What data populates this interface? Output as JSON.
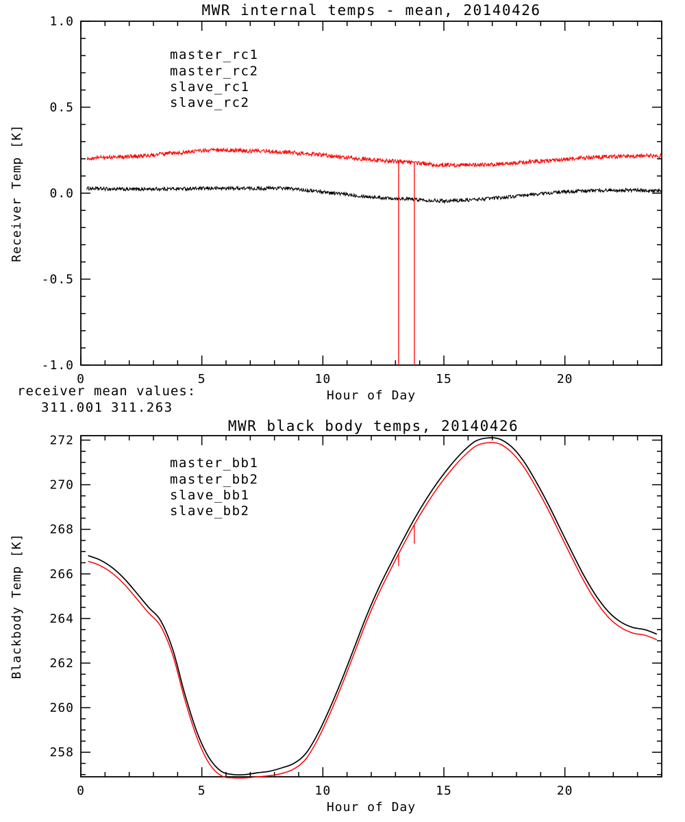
{
  "figure": {
    "background": "#ffffff",
    "frame_color": "#000000"
  },
  "colors": {
    "black": "#000000",
    "red": "#ff0000",
    "blue": "#0000ff",
    "green": "#00e000"
  },
  "annotation": {
    "label": "receiver mean values:",
    "values": [
      {
        "text": "311.001",
        "color": "#000000"
      },
      {
        "text": "311.263",
        "color": "#ff0000"
      }
    ]
  },
  "chart_data": [
    {
      "type": "line",
      "title": "MWR internal temps - mean, 20140426",
      "xlabel": "Hour of Day",
      "ylabel": "Receiver Temp [K]",
      "xlim": [
        0,
        24
      ],
      "ylim": [
        -1.0,
        1.0
      ],
      "grid": false,
      "legend_position": "upper-left-inside",
      "x_major_ticks": [
        0,
        5,
        10,
        15,
        20
      ],
      "x_major_labels": [
        "0",
        "5",
        "10",
        "15",
        "20"
      ],
      "x_minor_step": 1,
      "y_major_ticks": [
        -1.0,
        -0.5,
        0.0,
        0.5,
        1.0
      ],
      "y_major_labels": [
        "-1.0",
        "-0.5",
        "0.0",
        "0.5",
        "1.0"
      ],
      "y_minor_step": 0.1,
      "legend": [
        {
          "label": "master_rc1",
          "color": "#000000"
        },
        {
          "label": "master_rc2",
          "color": "#ff0000"
        },
        {
          "label": "slave_rc1",
          "color": "#0000ff"
        },
        {
          "label": "slave_rc2",
          "color": "#00e000"
        }
      ],
      "series": [
        {
          "name": "master_rc1",
          "color": "#000000",
          "noise": 0.01,
          "width": 1.1,
          "x": [
            0.25,
            1,
            2,
            3,
            4,
            5,
            5.5,
            6,
            6.5,
            7,
            7.5,
            8,
            8.5,
            9,
            9.5,
            10,
            10.5,
            11,
            11.5,
            12,
            12.5,
            13,
            13.5,
            14,
            14.5,
            15,
            15.5,
            16,
            16.5,
            17,
            17.5,
            18,
            18.5,
            19,
            19.5,
            20,
            20.5,
            21,
            21.5,
            22,
            22.5,
            23,
            23.5,
            24
          ],
          "y": [
            0.028,
            0.025,
            0.022,
            0.024,
            0.026,
            0.027,
            0.028,
            0.028,
            0.029,
            0.028,
            0.027,
            0.03,
            0.028,
            0.022,
            0.015,
            0.008,
            0.0,
            -0.008,
            -0.015,
            -0.022,
            -0.027,
            -0.03,
            -0.033,
            -0.038,
            -0.042,
            -0.044,
            -0.043,
            -0.04,
            -0.035,
            -0.03,
            -0.024,
            -0.018,
            -0.01,
            -0.003,
            0.003,
            0.008,
            0.012,
            0.014,
            0.016,
            0.018,
            0.018,
            0.017,
            0.015,
            0.012
          ]
        },
        {
          "name": "master_rc2",
          "color": "#ff0000",
          "noise": 0.012,
          "width": 1.1,
          "x": [
            0.25,
            1,
            2,
            3,
            4,
            5,
            5.5,
            6,
            6.5,
            7,
            7.5,
            8,
            8.5,
            9,
            9.5,
            10,
            10.5,
            11,
            11.5,
            12,
            12.5,
            13,
            13.5,
            14,
            14.5,
            15,
            15.5,
            16,
            16.5,
            17,
            17.5,
            18,
            18.5,
            19,
            19.5,
            20,
            20.5,
            21,
            21.5,
            22,
            22.5,
            23,
            23.5,
            24
          ],
          "y": [
            0.203,
            0.208,
            0.213,
            0.222,
            0.235,
            0.246,
            0.249,
            0.25,
            0.248,
            0.246,
            0.244,
            0.242,
            0.238,
            0.233,
            0.228,
            0.222,
            0.215,
            0.208,
            0.201,
            0.196,
            0.19,
            0.186,
            0.181,
            0.173,
            0.168,
            0.165,
            0.163,
            0.163,
            0.165,
            0.168,
            0.171,
            0.175,
            0.18,
            0.185,
            0.191,
            0.197,
            0.202,
            0.207,
            0.21,
            0.213,
            0.215,
            0.215,
            0.217,
            0.218
          ]
        }
      ],
      "spikes": [
        {
          "x": 13.13,
          "y1": 0.19,
          "y2": -1.0,
          "color": "#ff0000"
        },
        {
          "x": 13.78,
          "y1": 0.18,
          "y2": -1.0,
          "color": "#ff0000"
        }
      ]
    },
    {
      "type": "line",
      "title": "MWR black body temps, 20140426",
      "xlabel": "Hour of Day",
      "ylabel": "Blackbody Temp [K]",
      "xlim": [
        0,
        24
      ],
      "ylim": [
        256.9,
        272.2
      ],
      "grid": false,
      "legend_position": "upper-left-inside",
      "x_major_ticks": [
        0,
        5,
        10,
        15,
        20
      ],
      "x_major_labels": [
        "0",
        "5",
        "10",
        "15",
        "20"
      ],
      "x_minor_step": 1,
      "y_major_ticks": [
        258,
        260,
        262,
        264,
        266,
        268,
        270,
        272
      ],
      "y_major_labels": [
        "258",
        "260",
        "262",
        "264",
        "266",
        "268",
        "270",
        "272"
      ],
      "y_minor_step": 0.5,
      "legend": [
        {
          "label": "master_bb1",
          "color": "#000000"
        },
        {
          "label": "master_bb2",
          "color": "#ff0000"
        },
        {
          "label": "slave_bb1",
          "color": "#0000ff"
        },
        {
          "label": "slave_bb2",
          "color": "#00e000"
        }
      ],
      "series": [
        {
          "name": "master_bb1",
          "color": "#000000",
          "noise": 0,
          "width": 1.7,
          "x": [
            0.3,
            0.8,
            1.3,
            1.8,
            2.3,
            2.8,
            3.3,
            3.8,
            4.3,
            4.8,
            5.3,
            5.8,
            6.3,
            6.8,
            7.3,
            7.8,
            8.3,
            8.8,
            9.3,
            9.8,
            10.3,
            10.8,
            11.3,
            11.8,
            12.3,
            12.8,
            13.3,
            13.8,
            14.3,
            14.8,
            15.3,
            15.8,
            16.3,
            16.8,
            17.3,
            17.8,
            18.3,
            18.8,
            19.3,
            19.8,
            20.3,
            20.8,
            21.3,
            21.8,
            22.3,
            22.8,
            23.3,
            23.8
          ],
          "y": [
            266.82,
            266.62,
            266.28,
            265.78,
            265.15,
            264.5,
            263.9,
            262.6,
            260.6,
            258.9,
            257.75,
            257.15,
            257.0,
            257.0,
            257.08,
            257.15,
            257.3,
            257.5,
            257.95,
            258.85,
            260.0,
            261.3,
            262.7,
            264.1,
            265.35,
            266.45,
            267.5,
            268.5,
            269.4,
            270.2,
            270.9,
            271.5,
            271.95,
            272.1,
            272.05,
            271.7,
            271.05,
            270.15,
            269.15,
            268.05,
            266.95,
            265.9,
            265.0,
            264.3,
            263.85,
            263.6,
            263.5,
            263.3
          ]
        },
        {
          "name": "master_bb2",
          "color": "#ff0000",
          "noise": 0,
          "width": 1.5,
          "x": [
            0.3,
            0.8,
            1.3,
            1.8,
            2.3,
            2.8,
            3.3,
            3.8,
            4.3,
            4.8,
            5.3,
            5.8,
            6.3,
            6.8,
            7.3,
            7.8,
            8.3,
            8.8,
            9.3,
            9.8,
            10.3,
            10.8,
            11.3,
            11.8,
            12.3,
            12.8,
            13.3,
            13.8,
            14.3,
            14.8,
            15.3,
            15.8,
            16.3,
            16.8,
            17.3,
            17.8,
            18.3,
            18.8,
            19.3,
            19.8,
            20.3,
            20.8,
            21.3,
            21.8,
            22.3,
            22.8,
            23.3,
            23.8
          ],
          "y": [
            266.57,
            266.37,
            266.03,
            265.53,
            264.9,
            264.25,
            263.65,
            262.35,
            260.35,
            258.65,
            257.5,
            256.95,
            256.85,
            256.85,
            256.9,
            256.95,
            257.05,
            257.25,
            257.7,
            258.6,
            259.75,
            261.05,
            262.45,
            263.85,
            265.1,
            266.2,
            267.25,
            268.25,
            269.15,
            269.95,
            270.65,
            271.25,
            271.72,
            271.88,
            271.83,
            271.45,
            270.8,
            269.9,
            268.9,
            267.8,
            266.7,
            265.65,
            264.75,
            264.05,
            263.6,
            263.35,
            263.25,
            263.05
          ]
        }
      ],
      "spikes": [
        {
          "x": 13.13,
          "y1": 266.9,
          "y2": 266.35,
          "color": "#ff0000"
        },
        {
          "x": 13.78,
          "y1": 268.2,
          "y2": 267.35,
          "color": "#ff0000"
        }
      ]
    }
  ]
}
